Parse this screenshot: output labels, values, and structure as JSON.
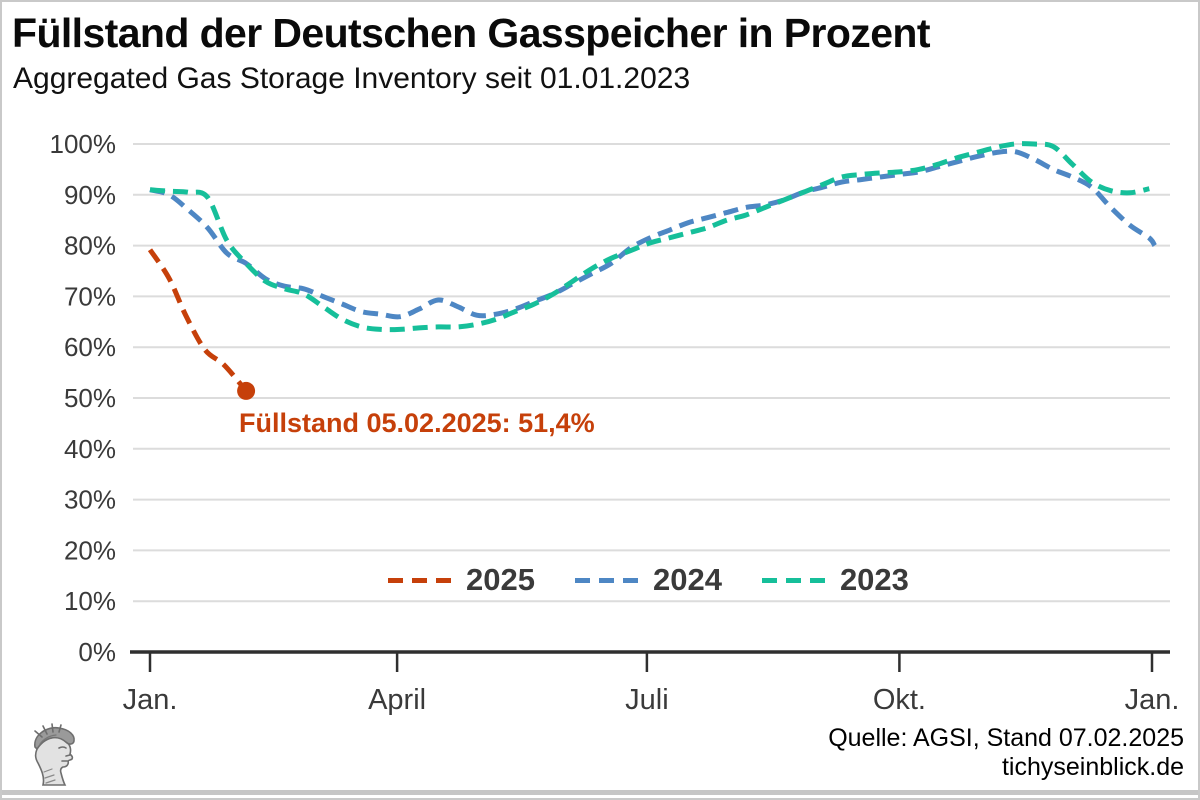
{
  "header": {
    "title": "Füllstand der Deutschen Gasspeicher in Prozent",
    "subtitle": "Aggregated Gas Storage Inventory seit 01.01.2023"
  },
  "chart_data": {
    "type": "line",
    "title": "Füllstand der Deutschen Gasspeicher in Prozent",
    "subtitle": "Aggregated Gas Storage Inventory seit 01.01.2023",
    "ylim": [
      0,
      100
    ],
    "y_unit": "%",
    "grid": true,
    "line_style": "dashed",
    "legend_position": "lower center",
    "y_ticks": {
      "values": [
        0,
        10,
        20,
        30,
        40,
        50,
        60,
        70,
        80,
        90,
        100
      ],
      "labels": [
        "0%",
        "10%",
        "20%",
        "30%",
        "40%",
        "50%",
        "60%",
        "70%",
        "80%",
        "90%",
        "100%"
      ]
    },
    "x_ticks": {
      "labels": [
        "Jan.",
        "April",
        "Juli",
        "Okt.",
        "Jan."
      ],
      "days": [
        0,
        90,
        181,
        273,
        365
      ]
    },
    "series": [
      {
        "name": "2025",
        "color": "#c6400a",
        "style": "dashed",
        "days": [
          0,
          7,
          13,
          20,
          27,
          35
        ],
        "values": [
          79.2,
          73.5,
          66.3,
          59.5,
          56.5,
          51.4
        ]
      },
      {
        "name": "2024",
        "color": "#4e87c4",
        "style": "dashed",
        "days": [
          0,
          7,
          14,
          21,
          28,
          35,
          42,
          49,
          56,
          63,
          70,
          77,
          84,
          91,
          98,
          105,
          112,
          119,
          126,
          133,
          140,
          147,
          154,
          161,
          168,
          175,
          182,
          189,
          196,
          203,
          210,
          217,
          224,
          231,
          238,
          245,
          252,
          259,
          266,
          273,
          280,
          287,
          294,
          301,
          308,
          315,
          322,
          329,
          336,
          343,
          350,
          357,
          364,
          366
        ],
        "values": [
          91,
          90,
          87,
          83.5,
          78.5,
          76.5,
          73.5,
          72,
          71.5,
          70,
          68.5,
          67,
          66.5,
          66,
          67.5,
          69.3,
          68,
          66.3,
          66.5,
          67.5,
          69,
          70.5,
          72.5,
          74.5,
          76.5,
          79.5,
          81.5,
          83,
          84.5,
          85.5,
          86.5,
          87.5,
          88,
          89,
          90.5,
          91.5,
          92.5,
          93,
          93.5,
          94,
          94.5,
          95.5,
          96.5,
          97.5,
          98.3,
          98.5,
          97,
          95,
          93.5,
          91.5,
          87.5,
          84,
          81.5,
          80
        ]
      },
      {
        "name": "2023",
        "color": "#16bf9a",
        "style": "dashed",
        "days": [
          0,
          7,
          14,
          21,
          28,
          35,
          42,
          49,
          56,
          63,
          70,
          77,
          84,
          91,
          98,
          105,
          112,
          119,
          126,
          133,
          140,
          147,
          154,
          161,
          168,
          175,
          182,
          189,
          196,
          203,
          210,
          217,
          224,
          231,
          238,
          245,
          252,
          259,
          266,
          273,
          280,
          287,
          294,
          301,
          308,
          315,
          322,
          329,
          336,
          343,
          350,
          357,
          364
        ],
        "values": [
          91,
          90.7,
          90.5,
          89.5,
          81,
          76.5,
          73,
          71.5,
          70.5,
          68,
          65.5,
          64,
          63.5,
          63.5,
          63.8,
          64,
          64,
          64.5,
          65.5,
          67,
          68.5,
          70.5,
          73,
          75.5,
          77.5,
          79,
          80.5,
          81.5,
          82.5,
          83.5,
          85,
          86,
          87.5,
          89,
          90.5,
          92,
          93.5,
          94,
          94.3,
          94.5,
          95,
          96,
          97.3,
          98.3,
          99.3,
          100,
          100,
          99.5,
          96,
          92.5,
          90.8,
          90.4,
          91.2
        ]
      }
    ],
    "annotation": {
      "text": "Füllstand 05.02.2025: 51,4%",
      "day": 35,
      "value": 51.4,
      "color": "#c6400a"
    }
  },
  "footer": {
    "source": "Quelle: AGSI, Stand 07.02.2025",
    "site": "tichyseinblick.de",
    "logo": "hermes-head-logo"
  },
  "colors": {
    "grid": "#dcdcdc",
    "axis": "#2f2f2f",
    "tick_label": "#3a3a3a",
    "border": "#c9c9c9"
  }
}
